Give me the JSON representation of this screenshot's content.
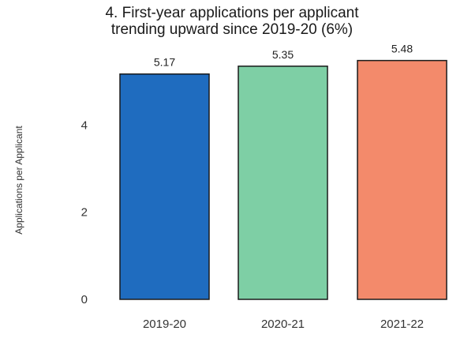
{
  "chart_data": {
    "type": "bar",
    "title_lines": [
      "4. First-year applications per applicant",
      "trending upward since 2019-20 (6%)"
    ],
    "xlabel": "",
    "ylabel": "Applications per Applicant",
    "categories": [
      "2019-20",
      "2020-21",
      "2021-22"
    ],
    "values": [
      5.17,
      5.35,
      5.48
    ],
    "value_labels": [
      "5.17",
      "5.35",
      "5.48"
    ],
    "colors": [
      "#1f6cbf",
      "#7ecfa5",
      "#f38a6b"
    ],
    "yticks": [
      0,
      2,
      4
    ],
    "ylim": [
      0,
      5.6
    ],
    "grid": false,
    "legend": "none"
  }
}
